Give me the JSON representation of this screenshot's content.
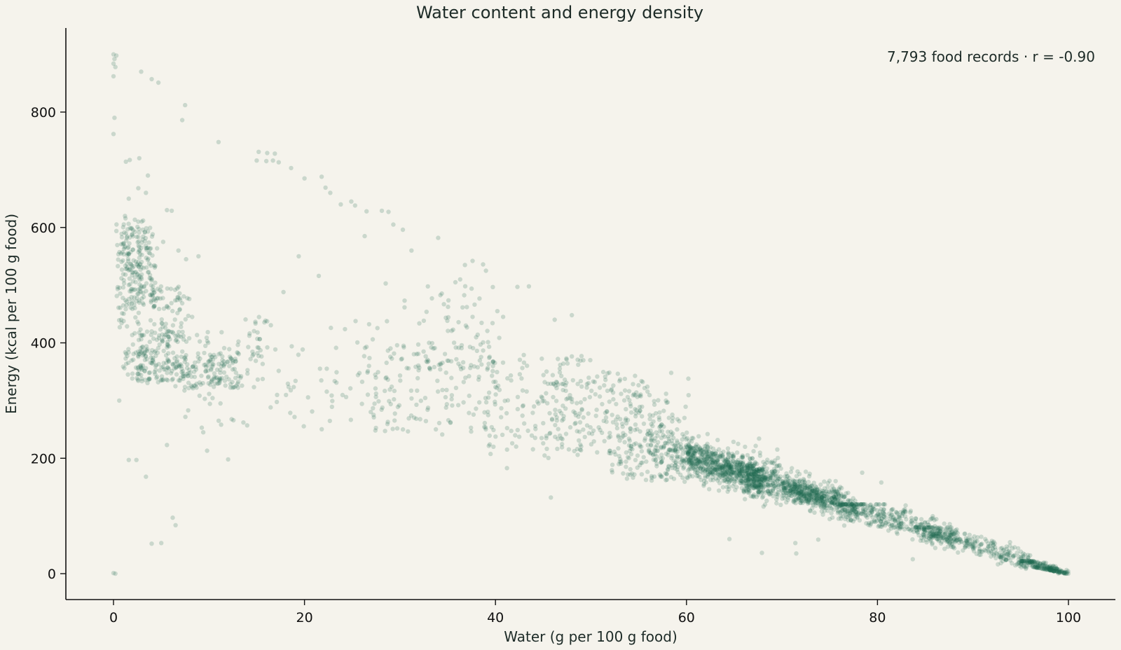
{
  "chart_data": {
    "type": "scatter",
    "title": "Water content and energy density",
    "xlabel": "Water (g per 100 g food)",
    "ylabel": "Energy (kcal per 100 g food)",
    "annotation": "7,793 food records · r = -0.90",
    "xlim": [
      -5,
      105
    ],
    "ylim": [
      -45,
      948
    ],
    "xticks": [
      0,
      20,
      40,
      60,
      80,
      100
    ],
    "yticks": [
      0,
      200,
      400,
      600,
      800
    ],
    "grid": false,
    "marker_color": "#1e6b52",
    "marker_opacity": 0.2,
    "n_points": 7793,
    "r": -0.9,
    "series": [
      {
        "values": [
          {
            "x": 0.0,
            "y": 900
          },
          {
            "x": 0.0,
            "y": 884
          },
          {
            "x": 0.1,
            "y": 892
          },
          {
            "x": 0.2,
            "y": 878
          },
          {
            "x": 0.3,
            "y": 898
          },
          {
            "x": 0.0,
            "y": 862
          },
          {
            "x": 0.1,
            "y": 790
          },
          {
            "x": 0.0,
            "y": 762
          },
          {
            "x": 0.0,
            "y": 1
          },
          {
            "x": 0.2,
            "y": 0
          },
          {
            "x": 2.9,
            "y": 870
          },
          {
            "x": 4.0,
            "y": 857
          },
          {
            "x": 4.7,
            "y": 851
          },
          {
            "x": 7.5,
            "y": 812
          },
          {
            "x": 7.2,
            "y": 786
          },
          {
            "x": 11.0,
            "y": 748
          },
          {
            "x": 1.3,
            "y": 714
          },
          {
            "x": 1.7,
            "y": 717
          },
          {
            "x": 2.7,
            "y": 720
          },
          {
            "x": 3.6,
            "y": 690
          },
          {
            "x": 5.6,
            "y": 630
          },
          {
            "x": 6.1,
            "y": 629
          },
          {
            "x": 15.2,
            "y": 731
          },
          {
            "x": 16.1,
            "y": 729
          },
          {
            "x": 16.9,
            "y": 728
          },
          {
            "x": 15.0,
            "y": 716
          },
          {
            "x": 16.0,
            "y": 715
          },
          {
            "x": 16.7,
            "y": 716
          },
          {
            "x": 17.3,
            "y": 713
          },
          {
            "x": 18.6,
            "y": 703
          },
          {
            "x": 20.0,
            "y": 685
          },
          {
            "x": 21.8,
            "y": 688
          },
          {
            "x": 22.2,
            "y": 669
          },
          {
            "x": 22.7,
            "y": 660
          },
          {
            "x": 24.9,
            "y": 645
          },
          {
            "x": 23.8,
            "y": 640
          },
          {
            "x": 25.3,
            "y": 638
          },
          {
            "x": 26.5,
            "y": 628
          },
          {
            "x": 28.1,
            "y": 629
          },
          {
            "x": 28.8,
            "y": 627
          },
          {
            "x": 26.3,
            "y": 585
          },
          {
            "x": 29.3,
            "y": 605
          },
          {
            "x": 30.3,
            "y": 596
          },
          {
            "x": 31.2,
            "y": 560
          },
          {
            "x": 34.0,
            "y": 582
          },
          {
            "x": 28.5,
            "y": 503
          },
          {
            "x": 19.4,
            "y": 550
          },
          {
            "x": 21.5,
            "y": 516
          },
          {
            "x": 17.8,
            "y": 488
          },
          {
            "x": 37.6,
            "y": 542
          },
          {
            "x": 36.8,
            "y": 535
          },
          {
            "x": 38.7,
            "y": 536
          },
          {
            "x": 39.0,
            "y": 525
          },
          {
            "x": 36.3,
            "y": 510
          },
          {
            "x": 35.8,
            "y": 505
          },
          {
            "x": 37.5,
            "y": 494
          },
          {
            "x": 42.3,
            "y": 497
          },
          {
            "x": 43.5,
            "y": 498
          },
          {
            "x": 37.0,
            "y": 462
          },
          {
            "x": 40.2,
            "y": 455
          },
          {
            "x": 40.8,
            "y": 445
          },
          {
            "x": 48.0,
            "y": 448
          },
          {
            "x": 46.2,
            "y": 440
          },
          {
            "x": 5.6,
            "y": 223
          },
          {
            "x": 3.4,
            "y": 168
          },
          {
            "x": 1.6,
            "y": 197
          },
          {
            "x": 2.4,
            "y": 197
          },
          {
            "x": 12.0,
            "y": 198
          },
          {
            "x": 6.2,
            "y": 97
          },
          {
            "x": 6.5,
            "y": 84
          },
          {
            "x": 4.0,
            "y": 52
          },
          {
            "x": 5.0,
            "y": 53
          },
          {
            "x": 41.2,
            "y": 183
          },
          {
            "x": 45.8,
            "y": 132
          },
          {
            "x": 64.5,
            "y": 60
          },
          {
            "x": 67.9,
            "y": 36
          },
          {
            "x": 71.5,
            "y": 35
          },
          {
            "x": 71.4,
            "y": 53
          },
          {
            "x": 78.4,
            "y": 175
          },
          {
            "x": 80.4,
            "y": 158
          },
          {
            "x": 83.7,
            "y": 25
          },
          {
            "x": 73.8,
            "y": 59
          },
          {
            "x": 67.6,
            "y": 234
          },
          {
            "x": 60.2,
            "y": 338
          },
          {
            "x": 58.4,
            "y": 348
          },
          {
            "x": 13.6,
            "y": 262
          },
          {
            "x": 14.0,
            "y": 257
          },
          {
            "x": 9.8,
            "y": 213
          },
          {
            "x": 20.8,
            "y": 281
          },
          {
            "x": 0.6,
            "y": 300
          },
          {
            "x": 9.4,
            "y": 245
          },
          {
            "x": 8.9,
            "y": 550
          },
          {
            "x": 5.2,
            "y": 575
          },
          {
            "x": 1.6,
            "y": 650
          },
          {
            "x": 2.6,
            "y": 668
          },
          {
            "x": 3.4,
            "y": 660
          },
          {
            "x": 1.2,
            "y": 620
          },
          {
            "x": 2.6,
            "y": 610
          },
          {
            "x": 3.1,
            "y": 612
          },
          {
            "x": 7.6,
            "y": 545
          },
          {
            "x": 6.8,
            "y": 560
          }
        ]
      }
    ],
    "clusters": [
      {
        "n": 110,
        "x": [
          0.3,
          3.0
        ],
        "y": [
          330,
          620
        ],
        "spread": 0.5
      },
      {
        "n": 160,
        "x": [
          1.0,
          4.5
        ],
        "y": [
          460,
          600
        ],
        "spread": 0.6
      },
      {
        "n": 130,
        "x": [
          2.0,
          6.0
        ],
        "y": [
          330,
          420
        ],
        "spread": 0.8
      },
      {
        "n": 70,
        "x": [
          4.0,
          8.0
        ],
        "y": [
          400,
          500
        ],
        "spread": 1.0
      },
      {
        "n": 160,
        "x": [
          6.0,
          13.5
        ],
        "y": [
          320,
          385
        ],
        "spread": 0.9
      },
      {
        "n": 45,
        "x": [
          7.0,
          13.0
        ],
        "y": [
          250,
          420
        ],
        "spread": 1.5
      },
      {
        "n": 30,
        "x": [
          14.0,
          16.0
        ],
        "y": [
          320,
          450
        ],
        "spread": 0.8
      },
      {
        "n": 60,
        "x": [
          15.0,
          30.0
        ],
        "y": [
          250,
          440
        ],
        "spread": 2.0
      },
      {
        "n": 140,
        "x": [
          26.0,
          40.0
        ],
        "y": [
          240,
          400
        ],
        "spread": 2.0
      },
      {
        "n": 70,
        "x": [
          30.0,
          40.0
        ],
        "y": [
          350,
          500
        ],
        "spread": 2.0
      },
      {
        "n": 130,
        "x": [
          39.0,
          50.0
        ],
        "y": [
          200,
          380
        ],
        "spread": 2.0
      },
      {
        "n": 150,
        "x": [
          45.0,
          56.0
        ],
        "y": [
          200,
          350
        ],
        "spread": 1.8
      },
      {
        "n": 150,
        "x": [
          52.0,
          60.0
        ],
        "y": [
          160,
          320
        ],
        "spread": 1.5
      },
      {
        "n": 420,
        "x": [
          56.0,
          70.0
        ],
        "y": [
          120,
          280
        ],
        "spread": 1.2
      },
      {
        "n": 500,
        "x": [
          60.0,
          68.0
        ],
        "y": [
          140,
          240
        ],
        "spread": 0.8
      },
      {
        "n": 420,
        "x": [
          66.0,
          78.0
        ],
        "y": [
          80,
          200
        ],
        "spread": 1.0
      },
      {
        "n": 260,
        "x": [
          70.0,
          76.0
        ],
        "y": [
          95,
          160
        ],
        "spread": 0.6
      },
      {
        "n": 340,
        "x": [
          76.0,
          88.0
        ],
        "y": [
          30,
          120
        ],
        "spread": 0.8
      },
      {
        "n": 300,
        "x": [
          84.0,
          96.0
        ],
        "y": [
          10,
          80
        ],
        "spread": 0.5
      },
      {
        "n": 140,
        "x": [
          95.0,
          100.0
        ],
        "y": [
          0,
          22
        ],
        "spread": 0.3
      }
    ]
  }
}
